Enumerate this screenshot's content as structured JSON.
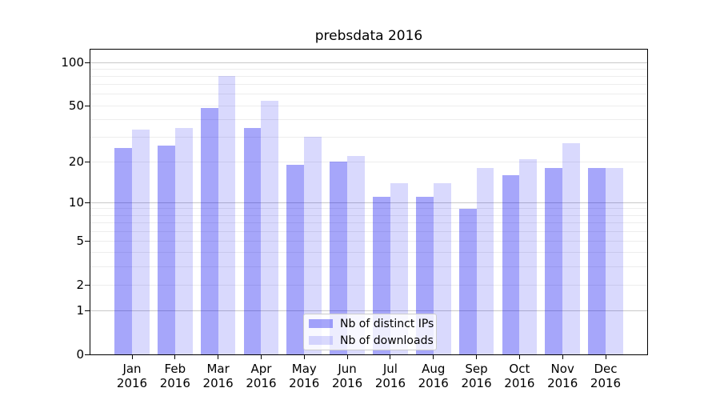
{
  "chart_data": {
    "type": "bar",
    "title": "prebsdata 2016",
    "categories": [
      "Jan",
      "Feb",
      "Mar",
      "Apr",
      "May",
      "Jun",
      "Jul",
      "Aug",
      "Sep",
      "Oct",
      "Nov",
      "Dec"
    ],
    "x_sublabel": "2016",
    "series": [
      {
        "name": "Nb of distinct IPs",
        "color": "rgba(0,0,240,0.35)",
        "values": [
          25,
          26,
          48,
          35,
          19,
          20,
          11,
          11,
          9,
          16,
          18,
          18
        ]
      },
      {
        "name": "Nb of downloads",
        "color": "rgba(0,0,240,0.15)",
        "values": [
          34,
          35,
          80,
          54,
          30,
          22,
          14,
          14,
          18,
          21,
          27,
          18
        ]
      }
    ],
    "yscale": "log1p",
    "ylim": [
      0,
      123
    ],
    "y_ticks": [
      0,
      1,
      2,
      5,
      10,
      20,
      50,
      100
    ],
    "grid": {
      "major": [
        1,
        10,
        100
      ],
      "minor": [
        2,
        3,
        4,
        5,
        6,
        7,
        8,
        9,
        20,
        30,
        40,
        50,
        60,
        70,
        80,
        90
      ],
      "major_color": "#c9c9c9",
      "minor_color": "#ededed"
    },
    "legend": {
      "position": "lower center"
    }
  }
}
